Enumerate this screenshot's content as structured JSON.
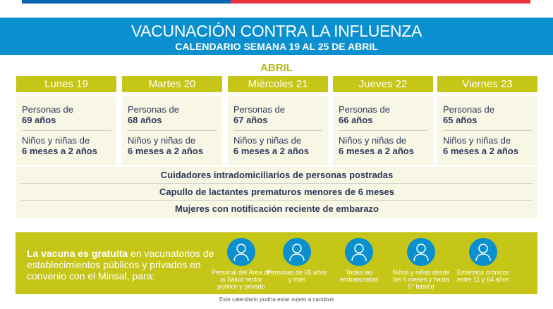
{
  "header": {
    "title": "VACUNACIÓN CONTRA LA INFLUENZA",
    "subtitle": "CALENDARIO SEMANA 19 AL 25 DE ABRIL"
  },
  "month": "ABRIL",
  "days": [
    {
      "label": "Lunes 19",
      "group1": "Personas de",
      "group1_bold": "69 años",
      "group2": "Niños y niñas de",
      "group2_bold": "6 meses a 2 años"
    },
    {
      "label": "Martes 20",
      "group1": "Personas de",
      "group1_bold": "68 años",
      "group2": "Niños y niñas de",
      "group2_bold": "6 meses a 2 años"
    },
    {
      "label": "Miércoles 21",
      "group1": "Personas de",
      "group1_bold": "67 años",
      "group2": "Niños y niñas de",
      "group2_bold": "6 meses a 2 años"
    },
    {
      "label": "Jueves 22",
      "group1": "Personas de",
      "group1_bold": "66 años",
      "group2": "Niños y niñas de",
      "group2_bold": "6 meses a 2 años"
    },
    {
      "label": "Viernes 23",
      "group1": "Personas de",
      "group1_bold": "65 años",
      "group2": "Niños y niñas de",
      "group2_bold": "6 meses a 2 años"
    }
  ],
  "all_week": [
    "Cuidadores intradomiciliarios de personas postradas",
    "Capullo de lactantes prematuros menores de 6 meses",
    "Mujeres con notificación reciente de embarazo"
  ],
  "info": {
    "bold": "La vacuna es gratuita",
    "text": " en vacunatorios de establecimientos públicos y privados en convenio con el Minsal, para:"
  },
  "groups": [
    {
      "icon": "health-worker-icon",
      "label": "Personal del Área de la Salud sector público y privado"
    },
    {
      "icon": "elderly-couple-icon",
      "label": "Personas de 65 años y más"
    },
    {
      "icon": "pregnant-woman-icon",
      "label": "Todas las embarazadas"
    },
    {
      "icon": "child-icon",
      "label": "Niños y niñas desde los 6 meses y hasta 5° básico"
    },
    {
      "icon": "chronic-patient-icon",
      "label": "Enfermos crónicos entre 11 y 64 años"
    }
  ],
  "footer": "Este calendario podría estar sujeto a cambios",
  "colors": {
    "blue": "#0a8fcf",
    "olive": "#c6c619",
    "cream": "#f8f7e6",
    "red": "#e8333c",
    "text": "#2f3858"
  }
}
